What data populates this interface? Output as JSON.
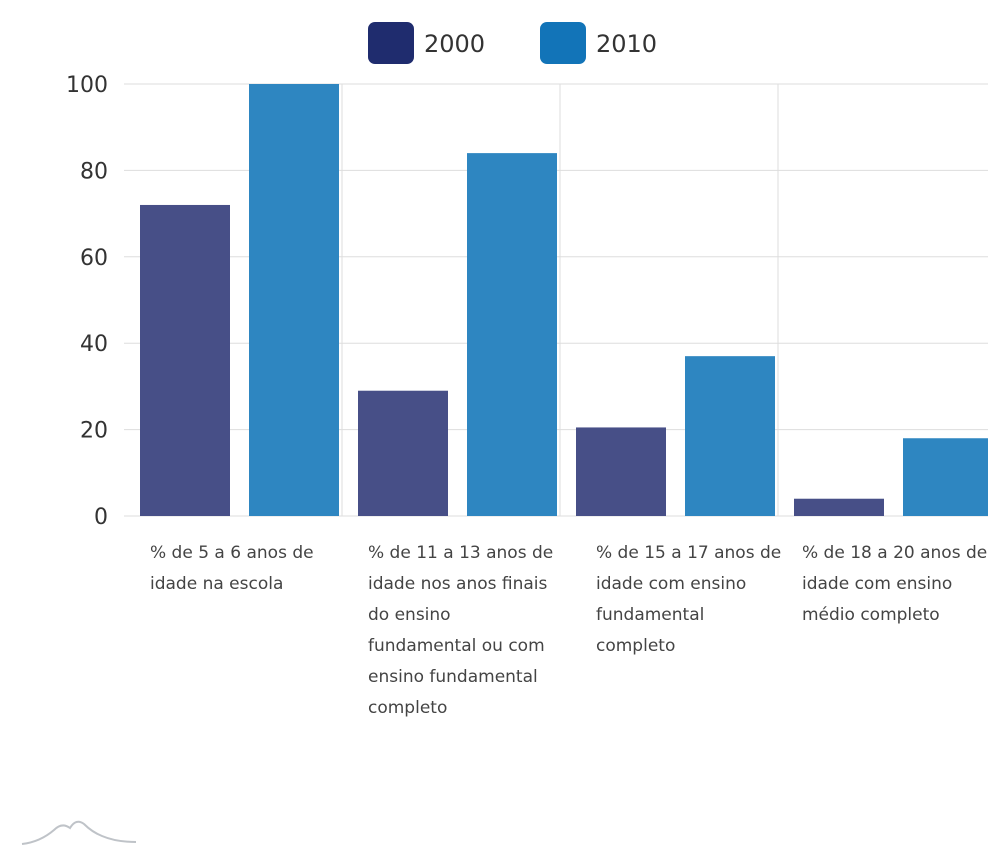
{
  "chart_data": {
    "type": "bar",
    "categories": [
      "% de 5 a 6 anos de idade na escola",
      "% de 11 a 13 anos de idade nos anos finais do ensino fundamental ou com ensino fundamental completo",
      "% de 15 a 17 anos de idade com ensino fundamental completo",
      "% de 18 a 20 anos de idade com ensino médio completo"
    ],
    "series": [
      {
        "name": "2000",
        "color": "#474f87",
        "values": [
          72,
          29,
          20.5,
          4
        ]
      },
      {
        "name": "2010",
        "color": "#2e86c1",
        "values": [
          100,
          84,
          37,
          18
        ]
      }
    ],
    "ylim": [
      0,
      100
    ],
    "yticks": [
      "0",
      "20",
      "40",
      "60",
      "80",
      "100"
    ],
    "grid": true,
    "legend_position": "top-center",
    "title": "",
    "xlabel": "",
    "ylabel": ""
  },
  "legend_colors": {
    "2000": "#1f2c6e",
    "2010": "#1274b8"
  }
}
